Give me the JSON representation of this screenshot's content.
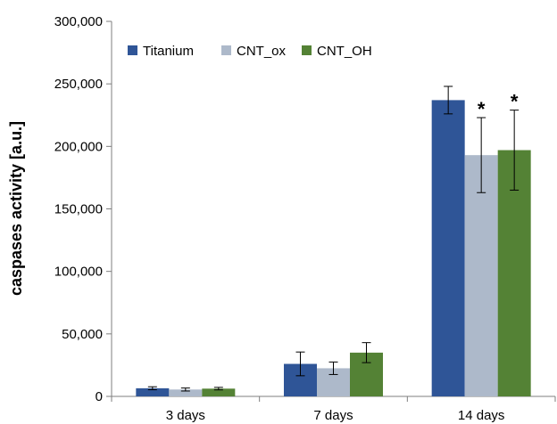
{
  "chart_data": {
    "type": "bar",
    "title": "",
    "xlabel": "",
    "ylabel": "caspases activity [a.u.]",
    "ylim": [
      0,
      300000
    ],
    "yticks": [
      0,
      50000,
      100000,
      150000,
      200000,
      250000,
      300000
    ],
    "ytick_labels": [
      "0",
      "50,000",
      "100,000",
      "150,000",
      "200,000",
      "250,000",
      "300,000"
    ],
    "categories": [
      "3 days",
      "7 days",
      "14 days"
    ],
    "grid": false,
    "legend_position": "top-left",
    "series": [
      {
        "name": "Titanium",
        "color": "#2F5597",
        "values": [
          6500,
          26000,
          237000
        ],
        "errors": [
          1200,
          9500,
          11000
        ]
      },
      {
        "name": "CNT_ox",
        "color": "#ADB9CA",
        "values": [
          5500,
          22500,
          193000
        ],
        "errors": [
          1200,
          5000,
          30000
        ]
      },
      {
        "name": "CNT_OH",
        "color": "#548235",
        "values": [
          6200,
          35000,
          197000
        ],
        "errors": [
          1000,
          8000,
          32000
        ]
      }
    ],
    "annotations": [
      {
        "text": "*",
        "category": "14 days",
        "series": "CNT_ox"
      },
      {
        "text": "*",
        "category": "14 days",
        "series": "CNT_OH"
      }
    ]
  }
}
